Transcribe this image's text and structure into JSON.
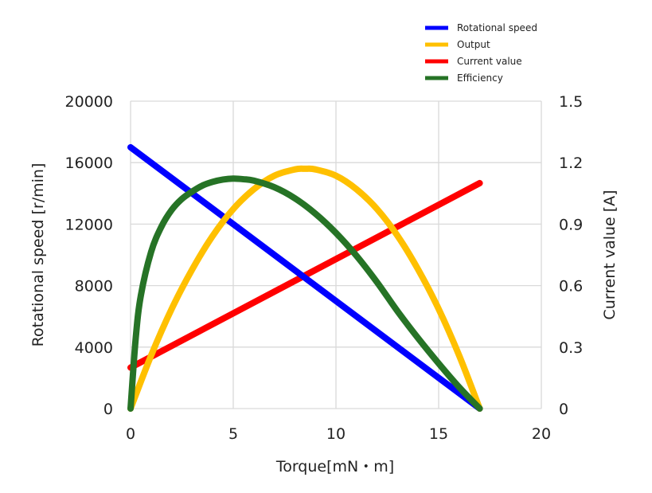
{
  "chart_data": {
    "type": "line",
    "xlabel": "Torque[mN・m]",
    "ylabel": "Rotational speed [r/min]",
    "y2label": "Current value [A]",
    "xlim": [
      0,
      20
    ],
    "ylim": [
      0,
      20000
    ],
    "y2lim": [
      0,
      1.5
    ],
    "x_ticks": [
      "0",
      "5",
      "10",
      "15",
      "20"
    ],
    "y_ticks": [
      "0",
      "4000",
      "8000",
      "12000",
      "16000",
      "20000"
    ],
    "y2_ticks": [
      "0",
      "0.3",
      "0.6",
      "0.9",
      "1.2",
      "1.5"
    ],
    "grid": true,
    "legend_position": "top-right",
    "series": [
      {
        "name": "Rotational speed",
        "color": "#0000ff",
        "axis": "left",
        "x": [
          0,
          17
        ],
        "y": [
          17000,
          0
        ]
      },
      {
        "name": "Output",
        "color": "#ffc000",
        "axis": "left",
        "x": [
          0,
          1,
          2,
          3,
          4,
          5,
          6,
          7,
          8,
          8.5,
          9,
          10,
          11,
          12,
          13,
          14,
          15,
          16,
          17
        ],
        "y": [
          0,
          3450,
          6480,
          9050,
          11240,
          12980,
          14270,
          15150,
          15560,
          15600,
          15560,
          15150,
          14270,
          12980,
          11240,
          9050,
          6480,
          3450,
          0
        ]
      },
      {
        "name": "Current value",
        "color": "#ff0000",
        "axis": "right",
        "x": [
          0,
          17
        ],
        "y": [
          0.2,
          1.1
        ]
      },
      {
        "name": "Efficiency",
        "color": "#267326",
        "axis": "left",
        "x": [
          0,
          0.25,
          0.5,
          1,
          1.5,
          2,
          2.5,
          3,
          3.5,
          4,
          4.5,
          5,
          5.5,
          6,
          7,
          8,
          9,
          10,
          11,
          12,
          13,
          14,
          15,
          16,
          17
        ],
        "y": [
          0,
          4560,
          7350,
          10190,
          11830,
          12920,
          13640,
          14120,
          14510,
          14750,
          14900,
          14960,
          14920,
          14830,
          14400,
          13680,
          12680,
          11430,
          9940,
          8220,
          6330,
          4580,
          2940,
          1390,
          0
        ]
      }
    ]
  }
}
